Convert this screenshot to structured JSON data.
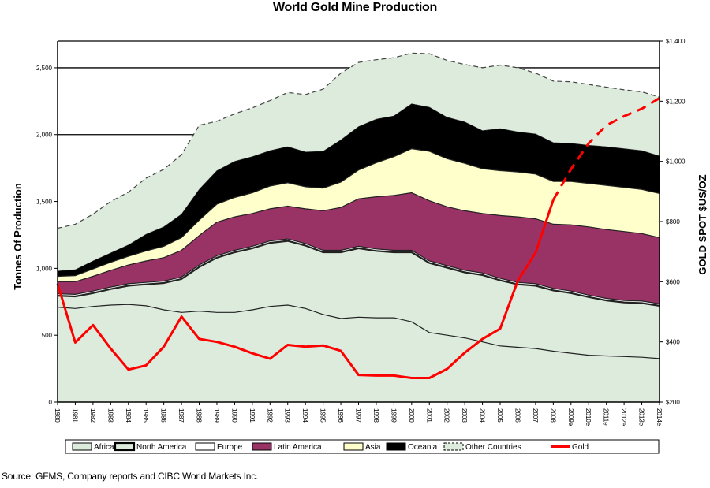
{
  "chart_data": {
    "type": "area",
    "title": "World Gold Mine Production",
    "xlabel": "",
    "ylabel": "Tonnes Of Production",
    "y2label": "GOLD SPOT $US/OZ",
    "source": "Source:  GFMS, Company reports and CIBC World Markets Inc.",
    "categories": [
      "1980",
      "1981",
      "1982",
      "1983",
      "1984",
      "1985",
      "1986",
      "1987",
      "1988",
      "1989",
      "1990",
      "1991",
      "1992",
      "1993",
      "1994",
      "1995",
      "1996",
      "1997",
      "1998",
      "1999",
      "2000",
      "2001",
      "2002",
      "2003",
      "2004",
      "2005",
      "2006",
      "2007",
      "2008",
      "2009e",
      "2010e",
      "2011e",
      "2012e",
      "2013e",
      "2014e"
    ],
    "ylim": [
      0,
      2700
    ],
    "yticks": [
      0,
      500,
      1000,
      1500,
      2000,
      2500
    ],
    "ytick_labels": [
      "0",
      "500",
      "1,000",
      "1,500",
      "2,000",
      "2,500"
    ],
    "y2lim": [
      200,
      1400
    ],
    "y2ticks": [
      200,
      400,
      600,
      800,
      1000,
      1200,
      1400
    ],
    "y2tick_labels": [
      "$200",
      "$400",
      "$600",
      "$800",
      "$1,000",
      "$1,200",
      "$1,400"
    ],
    "gridlines": [
      2000,
      2500
    ],
    "stacked": true,
    "series": [
      {
        "name": "Africa",
        "color": "#dcebdc",
        "values": [
          710,
          700,
          715,
          725,
          730,
          720,
          690,
          670,
          680,
          670,
          670,
          690,
          715,
          725,
          700,
          655,
          625,
          635,
          630,
          630,
          600,
          520,
          500,
          480,
          450,
          420,
          410,
          400,
          380,
          365,
          350,
          345,
          340,
          335,
          325
        ]
      },
      {
        "name": "North America",
        "color": "#dcebdc",
        "values": [
          85,
          90,
          100,
          120,
          140,
          160,
          200,
          250,
          330,
          410,
          450,
          460,
          475,
          480,
          470,
          465,
          495,
          515,
          500,
          490,
          520,
          520,
          505,
          490,
          500,
          490,
          470,
          470,
          455,
          450,
          435,
          415,
          405,
          405,
          395
        ]
      },
      {
        "name": "Europe",
        "color": "#ffffff",
        "values": [
          15,
          15,
          15,
          15,
          15,
          15,
          15,
          15,
          15,
          15,
          15,
          15,
          15,
          15,
          15,
          15,
          15,
          15,
          15,
          15,
          15,
          15,
          15,
          15,
          15,
          15,
          15,
          15,
          15,
          15,
          15,
          15,
          15,
          15,
          15
        ]
      },
      {
        "name": "Latin America",
        "color": "#993366",
        "values": [
          90,
          95,
          110,
          125,
          140,
          160,
          175,
          200,
          220,
          250,
          250,
          245,
          240,
          245,
          260,
          295,
          320,
          355,
          390,
          410,
          430,
          450,
          440,
          445,
          445,
          470,
          490,
          485,
          480,
          495,
          510,
          515,
          515,
          505,
          495
        ]
      },
      {
        "name": "Asia",
        "color": "#ffffcc",
        "values": [
          40,
          45,
          55,
          60,
          65,
          75,
          85,
          95,
          115,
          135,
          145,
          155,
          170,
          175,
          165,
          170,
          190,
          215,
          255,
          290,
          330,
          370,
          360,
          355,
          335,
          335,
          335,
          335,
          320,
          325,
          325,
          330,
          330,
          330,
          330
        ]
      },
      {
        "name": "Oceania",
        "color": "#000000",
        "values": [
          40,
          45,
          60,
          70,
          85,
          125,
          145,
          175,
          230,
          250,
          270,
          270,
          265,
          270,
          260,
          275,
          315,
          325,
          325,
          305,
          335,
          330,
          310,
          310,
          285,
          315,
          300,
          300,
          290,
          285,
          285,
          290,
          290,
          290,
          280
        ]
      },
      {
        "name": "Other Countries",
        "color": "#dcebdc",
        "values": [
          320,
          340,
          350,
          385,
          395,
          420,
          430,
          445,
          480,
          370,
          355,
          365,
          375,
          405,
          430,
          465,
          500,
          480,
          445,
          435,
          380,
          400,
          425,
          430,
          470,
          475,
          480,
          455,
          460,
          460,
          455,
          445,
          440,
          440,
          440
        ]
      }
    ],
    "gold_series": {
      "name": "Gold",
      "color": "#ff0000",
      "axis": "right",
      "values": [
        593,
        398,
        456,
        378,
        308,
        322,
        384,
        484,
        410,
        400,
        384,
        362,
        344,
        390,
        384,
        388,
        370,
        290,
        288,
        288,
        280,
        280,
        310,
        364,
        410,
        444,
        604,
        696,
        872,
        974,
        1060,
        1120,
        1150,
        1175,
        1210
      ],
      "forecast_from": "2009e"
    },
    "legend": {
      "placement": "bottom",
      "entries": [
        "Africa",
        "North America",
        "Europe",
        "Latin America",
        "Asia",
        "Oceania",
        "Other Countries",
        "Gold"
      ]
    }
  }
}
